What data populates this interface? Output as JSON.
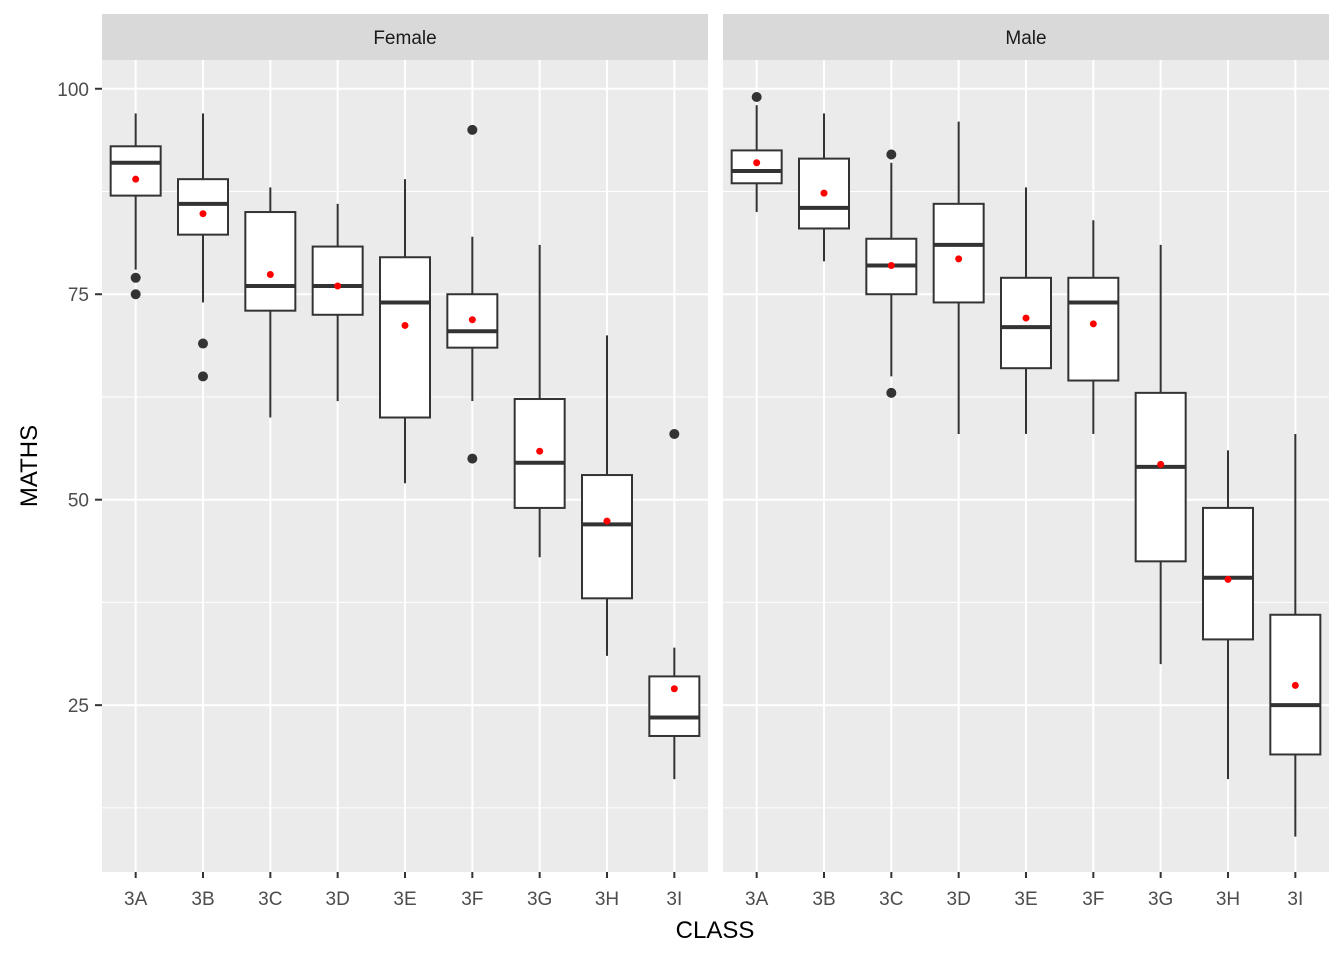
{
  "chart_data": {
    "type": "boxplot",
    "xlabel": "CLASS",
    "ylabel": "MATHS",
    "ylim": [
      4.7,
      103.5
    ],
    "yticks": [
      25,
      50,
      75,
      100
    ],
    "yminor": [
      12.5,
      37.5,
      62.5,
      87.5
    ],
    "grid": true,
    "categories": [
      "3A",
      "3B",
      "3C",
      "3D",
      "3E",
      "3F",
      "3G",
      "3H",
      "3I"
    ],
    "colors": {
      "panel_bg": "#ebebeb",
      "strip_bg": "#d9d9d9",
      "grid": "#ffffff",
      "box_line": "#333333",
      "box_fill": "#ffffff",
      "mean_point": "#ff0000",
      "outlier": "#333333"
    },
    "facets": [
      {
        "label": "Female",
        "boxes": [
          {
            "class": "3A",
            "whisker_low": 78,
            "q1": 87,
            "median": 91,
            "q3": 93,
            "whisker_high": 97,
            "mean": 89,
            "outliers": [
              77,
              75
            ]
          },
          {
            "class": "3B",
            "whisker_low": 74,
            "q1": 82.25,
            "median": 86,
            "q3": 89,
            "whisker_high": 97,
            "mean": 84.8,
            "outliers": [
              69,
              65
            ]
          },
          {
            "class": "3C",
            "whisker_low": 60,
            "q1": 73,
            "median": 76,
            "q3": 85,
            "whisker_high": 88,
            "mean": 77.4,
            "outliers": []
          },
          {
            "class": "3D",
            "whisker_low": 62,
            "q1": 72.5,
            "median": 76,
            "q3": 80.8,
            "whisker_high": 86,
            "mean": 76,
            "outliers": []
          },
          {
            "class": "3E",
            "whisker_low": 52,
            "q1": 60,
            "median": 74,
            "q3": 79.5,
            "whisker_high": 89,
            "mean": 71.2,
            "outliers": []
          },
          {
            "class": "3F",
            "whisker_low": 62,
            "q1": 68.5,
            "median": 70.5,
            "q3": 75,
            "whisker_high": 82,
            "mean": 71.9,
            "outliers": [
              95,
              55
            ]
          },
          {
            "class": "3G",
            "whisker_low": 43,
            "q1": 49,
            "median": 54.5,
            "q3": 62.25,
            "whisker_high": 81,
            "mean": 55.9,
            "outliers": []
          },
          {
            "class": "3H",
            "whisker_low": 31,
            "q1": 38,
            "median": 47,
            "q3": 53,
            "whisker_high": 70,
            "mean": 47.4,
            "outliers": []
          },
          {
            "class": "3I",
            "whisker_low": 16,
            "q1": 21.25,
            "median": 23.5,
            "q3": 28.5,
            "whisker_high": 32,
            "mean": 27,
            "outliers": [
              58
            ]
          }
        ]
      },
      {
        "label": "Male",
        "boxes": [
          {
            "class": "3A",
            "whisker_low": 85,
            "q1": 88.5,
            "median": 90,
            "q3": 92.5,
            "whisker_high": 98,
            "mean": 91,
            "outliers": [
              99
            ]
          },
          {
            "class": "3B",
            "whisker_low": 79,
            "q1": 83,
            "median": 85.5,
            "q3": 91.5,
            "whisker_high": 97,
            "mean": 87.3,
            "outliers": []
          },
          {
            "class": "3C",
            "whisker_low": 65,
            "q1": 75,
            "median": 78.5,
            "q3": 81.75,
            "whisker_high": 91,
            "mean": 78.5,
            "outliers": [
              92,
              63
            ]
          },
          {
            "class": "3D",
            "whisker_low": 58,
            "q1": 74,
            "median": 81,
            "q3": 86,
            "whisker_high": 96,
            "mean": 79.3,
            "outliers": []
          },
          {
            "class": "3E",
            "whisker_low": 58,
            "q1": 66,
            "median": 71,
            "q3": 77,
            "whisker_high": 88,
            "mean": 72.1,
            "outliers": []
          },
          {
            "class": "3F",
            "whisker_low": 58,
            "q1": 64.5,
            "median": 74,
            "q3": 77,
            "whisker_high": 84,
            "mean": 71.4,
            "outliers": []
          },
          {
            "class": "3G",
            "whisker_low": 30,
            "q1": 42.5,
            "median": 54,
            "q3": 63,
            "whisker_high": 81,
            "mean": 54.3,
            "outliers": []
          },
          {
            "class": "3H",
            "whisker_low": 16,
            "q1": 33,
            "median": 40.5,
            "q3": 49,
            "whisker_high": 56,
            "mean": 40.3,
            "outliers": []
          },
          {
            "class": "3I",
            "whisker_low": 9,
            "q1": 19,
            "median": 25,
            "q3": 36,
            "whisker_high": 58,
            "mean": 27.4,
            "outliers": []
          }
        ]
      }
    ]
  }
}
